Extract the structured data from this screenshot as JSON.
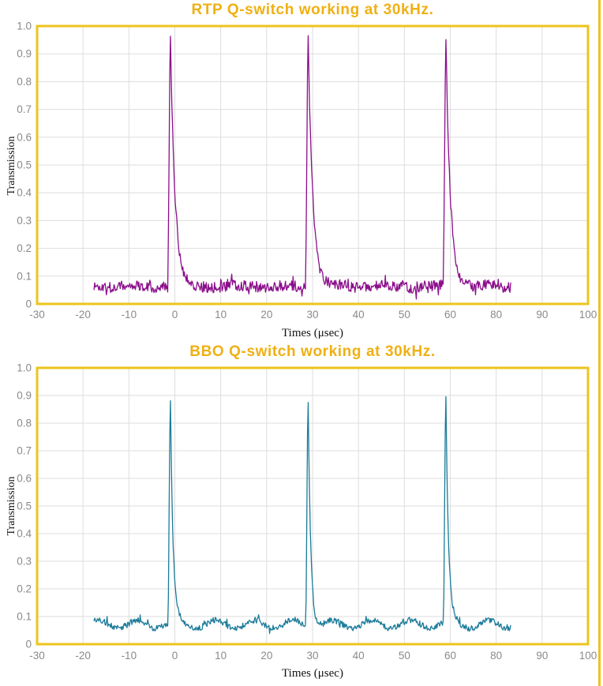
{
  "page": {
    "background": "#ffffff",
    "outer_border_color": "#EDC41D"
  },
  "style": {
    "frame_color": "#EDC41D",
    "grid_color": "#DDDDDD",
    "tick_label_color": "#8A8A8A",
    "title_color": "#F0B013",
    "axis_label_color": "#111111",
    "plot_background": "#FFFFFF"
  },
  "chart_data": [
    {
      "type": "line",
      "title": "RTP Q-switch working at 30kHz.",
      "xlabel": "Times (μsec)",
      "ylabel": "Transmission",
      "series_name": "RTP Q-switch transmission",
      "line_color": "#8B0E8B",
      "grid": true,
      "x_tick_labels": [
        "-30",
        "-20",
        "-10",
        "0",
        "10",
        "20",
        "30",
        "40",
        "50",
        "60",
        "80",
        "90",
        "100"
      ],
      "y_tick_labels": [
        "0",
        "0.1",
        "0.2",
        "0.3",
        "0.4",
        "0.5",
        "0.6",
        "0.7",
        "0.8",
        "0.9",
        "1.0"
      ],
      "x_axis_true_range_usec": [
        -30,
        90
      ],
      "ylim": [
        0,
        1.0
      ],
      "pulse_period_usec": 30,
      "signal": {
        "t_start": -17.6,
        "t_end": 73.2,
        "baseline": 0.063,
        "noise_amp": 0.02,
        "spike_prob": 0.1,
        "spike_extra": 0.024,
        "slow_wave_amp": 0.004,
        "slow_wave_period": 11,
        "slow_wave_phase": 0.4,
        "sample_step": 0.15,
        "seed": 1337,
        "peaks": [
          {
            "t": -1,
            "height": 1.0,
            "rise": 0.5,
            "decay_tau": 1.0
          },
          {
            "t": 29,
            "height": 1.0,
            "rise": 0.5,
            "decay_tau": 1.0
          },
          {
            "t": 59,
            "height": 0.99,
            "rise": 0.5,
            "decay_tau": 1.0
          }
        ]
      }
    },
    {
      "type": "line",
      "title": "BBO Q-switch working at 30kHz.",
      "xlabel": "Times (μsec)",
      "ylabel": "Transmission",
      "series_name": "BBO Q-switch transmission",
      "line_color": "#1B7B99",
      "grid": true,
      "x_tick_labels": [
        "-30",
        "-20",
        "-10",
        "0",
        "10",
        "20",
        "30",
        "40",
        "50",
        "60",
        "80",
        "90",
        "100"
      ],
      "y_tick_labels": [
        "0",
        "0.1",
        "0.2",
        "0.3",
        "0.4",
        "0.5",
        "0.6",
        "0.7",
        "0.8",
        "0.9",
        "1.0"
      ],
      "x_axis_true_range_usec": [
        -30,
        90
      ],
      "ylim": [
        0,
        1.0
      ],
      "pulse_period_usec": 30,
      "signal": {
        "t_start": -17.6,
        "t_end": 73.2,
        "baseline": 0.072,
        "noise_amp": 0.011,
        "spike_prob": 0.06,
        "spike_extra": 0.018,
        "slow_wave_amp": 0.015,
        "slow_wave_period": 8.5,
        "slow_wave_phase": 1.3,
        "sample_step": 0.15,
        "seed": 4242,
        "peaks": [
          {
            "t": -1,
            "height": 0.95,
            "rise": 0.45,
            "decay_tau": 0.55
          },
          {
            "t": 29,
            "height": 0.97,
            "rise": 0.45,
            "decay_tau": 0.55
          },
          {
            "t": 59,
            "height": 0.96,
            "rise": 0.45,
            "decay_tau": 0.55
          }
        ]
      }
    }
  ]
}
